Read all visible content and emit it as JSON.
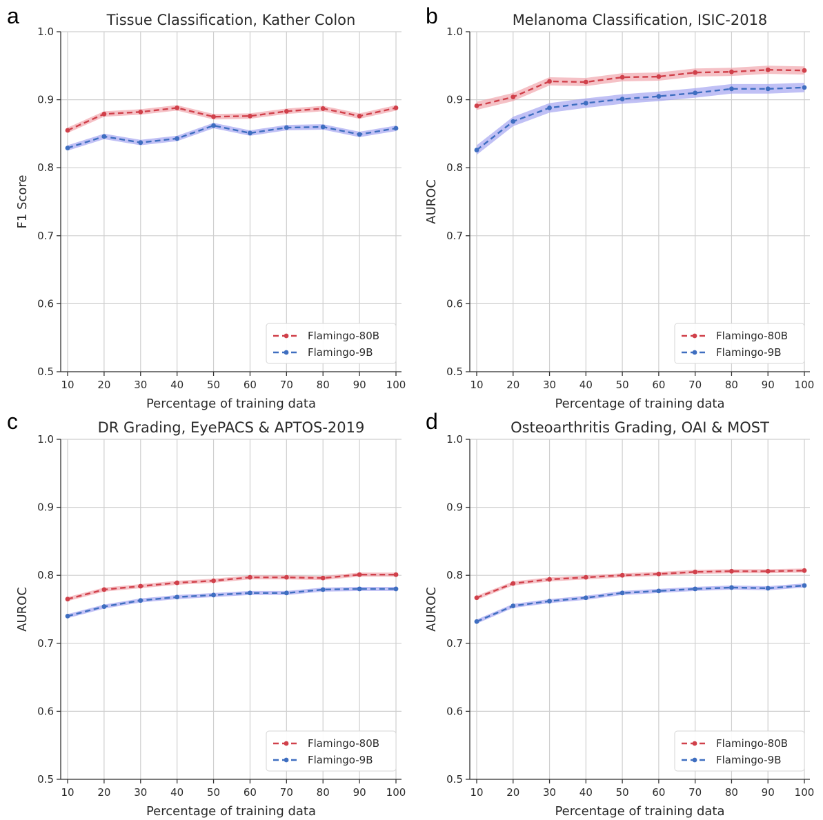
{
  "colors": {
    "red": "#d0404a",
    "red_band": "#f0a0a8",
    "blue": "#3e6ec0",
    "blue_band": "#9e9ef0"
  },
  "chart_data": [
    {
      "type": "line",
      "panel": "a",
      "title": "Tissue Classification, Kather Colon",
      "xlabel": "Percentage of training data",
      "ylabel": "F1 Score",
      "x": [
        10,
        20,
        30,
        40,
        50,
        60,
        70,
        80,
        90,
        100
      ],
      "xticks": [
        "10",
        "20",
        "30",
        "40",
        "50",
        "60",
        "70",
        "80",
        "90",
        "100"
      ],
      "ylim": [
        0.5,
        1.0
      ],
      "yticks": [
        "0.5",
        "0.6",
        "0.7",
        "0.8",
        "0.9",
        "1.0"
      ],
      "grid": true,
      "legend": "bottom-right",
      "series": [
        {
          "name": "Flamingo-80B",
          "color": "red",
          "values": [
            0.855,
            0.879,
            0.882,
            0.888,
            0.875,
            0.876,
            0.883,
            0.887,
            0.876,
            0.888
          ],
          "band": 0.004
        },
        {
          "name": "Flamingo-9B",
          "color": "blue",
          "values": [
            0.829,
            0.846,
            0.837,
            0.843,
            0.862,
            0.851,
            0.859,
            0.86,
            0.849,
            0.858
          ],
          "band": 0.004
        }
      ]
    },
    {
      "type": "line",
      "panel": "b",
      "title": "Melanoma Classification, ISIC-2018",
      "xlabel": "Percentage of training data",
      "ylabel": "AUROC",
      "x": [
        10,
        20,
        30,
        40,
        50,
        60,
        70,
        80,
        90,
        100
      ],
      "xticks": [
        "10",
        "20",
        "30",
        "40",
        "50",
        "60",
        "70",
        "80",
        "90",
        "100"
      ],
      "ylim": [
        0.5,
        1.0
      ],
      "yticks": [
        "0.5",
        "0.6",
        "0.7",
        "0.8",
        "0.9",
        "1.0"
      ],
      "grid": true,
      "legend": "bottom-right",
      "series": [
        {
          "name": "Flamingo-80B",
          "color": "red",
          "values": [
            0.891,
            0.904,
            0.927,
            0.926,
            0.933,
            0.934,
            0.94,
            0.941,
            0.944,
            0.943
          ],
          "band": 0.006
        },
        {
          "name": "Flamingo-9B",
          "color": "blue",
          "values": [
            0.826,
            0.868,
            0.888,
            0.895,
            0.901,
            0.905,
            0.91,
            0.916,
            0.916,
            0.918
          ],
          "band": 0.007
        }
      ]
    },
    {
      "type": "line",
      "panel": "c",
      "title": "DR Grading, EyePACS & APTOS-2019",
      "xlabel": "Percentage of training data",
      "ylabel": "AUROC",
      "x": [
        10,
        20,
        30,
        40,
        50,
        60,
        70,
        80,
        90,
        100
      ],
      "xticks": [
        "10",
        "20",
        "30",
        "40",
        "50",
        "60",
        "70",
        "80",
        "90",
        "100"
      ],
      "ylim": [
        0.5,
        1.0
      ],
      "yticks": [
        "0.5",
        "0.6",
        "0.7",
        "0.8",
        "0.9",
        "1.0"
      ],
      "grid": true,
      "legend": "bottom-right",
      "series": [
        {
          "name": "Flamingo-80B",
          "color": "red",
          "values": [
            0.765,
            0.779,
            0.784,
            0.789,
            0.792,
            0.797,
            0.797,
            0.796,
            0.801,
            0.801
          ],
          "band": 0.003
        },
        {
          "name": "Flamingo-9B",
          "color": "blue",
          "values": [
            0.74,
            0.754,
            0.763,
            0.768,
            0.771,
            0.774,
            0.774,
            0.779,
            0.78,
            0.78
          ],
          "band": 0.003
        }
      ]
    },
    {
      "type": "line",
      "panel": "d",
      "title": "Osteoarthritis Grading, OAI & MOST",
      "xlabel": "Percentage of training data",
      "ylabel": "AUROC",
      "x": [
        10,
        20,
        30,
        40,
        50,
        60,
        70,
        80,
        90,
        100
      ],
      "xticks": [
        "10",
        "20",
        "30",
        "40",
        "50",
        "60",
        "70",
        "80",
        "90",
        "100"
      ],
      "ylim": [
        0.5,
        1.0
      ],
      "yticks": [
        "0.5",
        "0.6",
        "0.7",
        "0.8",
        "0.9",
        "1.0"
      ],
      "grid": true,
      "legend": "bottom-right",
      "series": [
        {
          "name": "Flamingo-80B",
          "color": "red",
          "values": [
            0.767,
            0.788,
            0.794,
            0.797,
            0.8,
            0.802,
            0.805,
            0.806,
            0.806,
            0.807
          ],
          "band": 0.003
        },
        {
          "name": "Flamingo-9B",
          "color": "blue",
          "values": [
            0.732,
            0.755,
            0.762,
            0.767,
            0.774,
            0.777,
            0.78,
            0.782,
            0.781,
            0.785
          ],
          "band": 0.003
        }
      ]
    }
  ]
}
